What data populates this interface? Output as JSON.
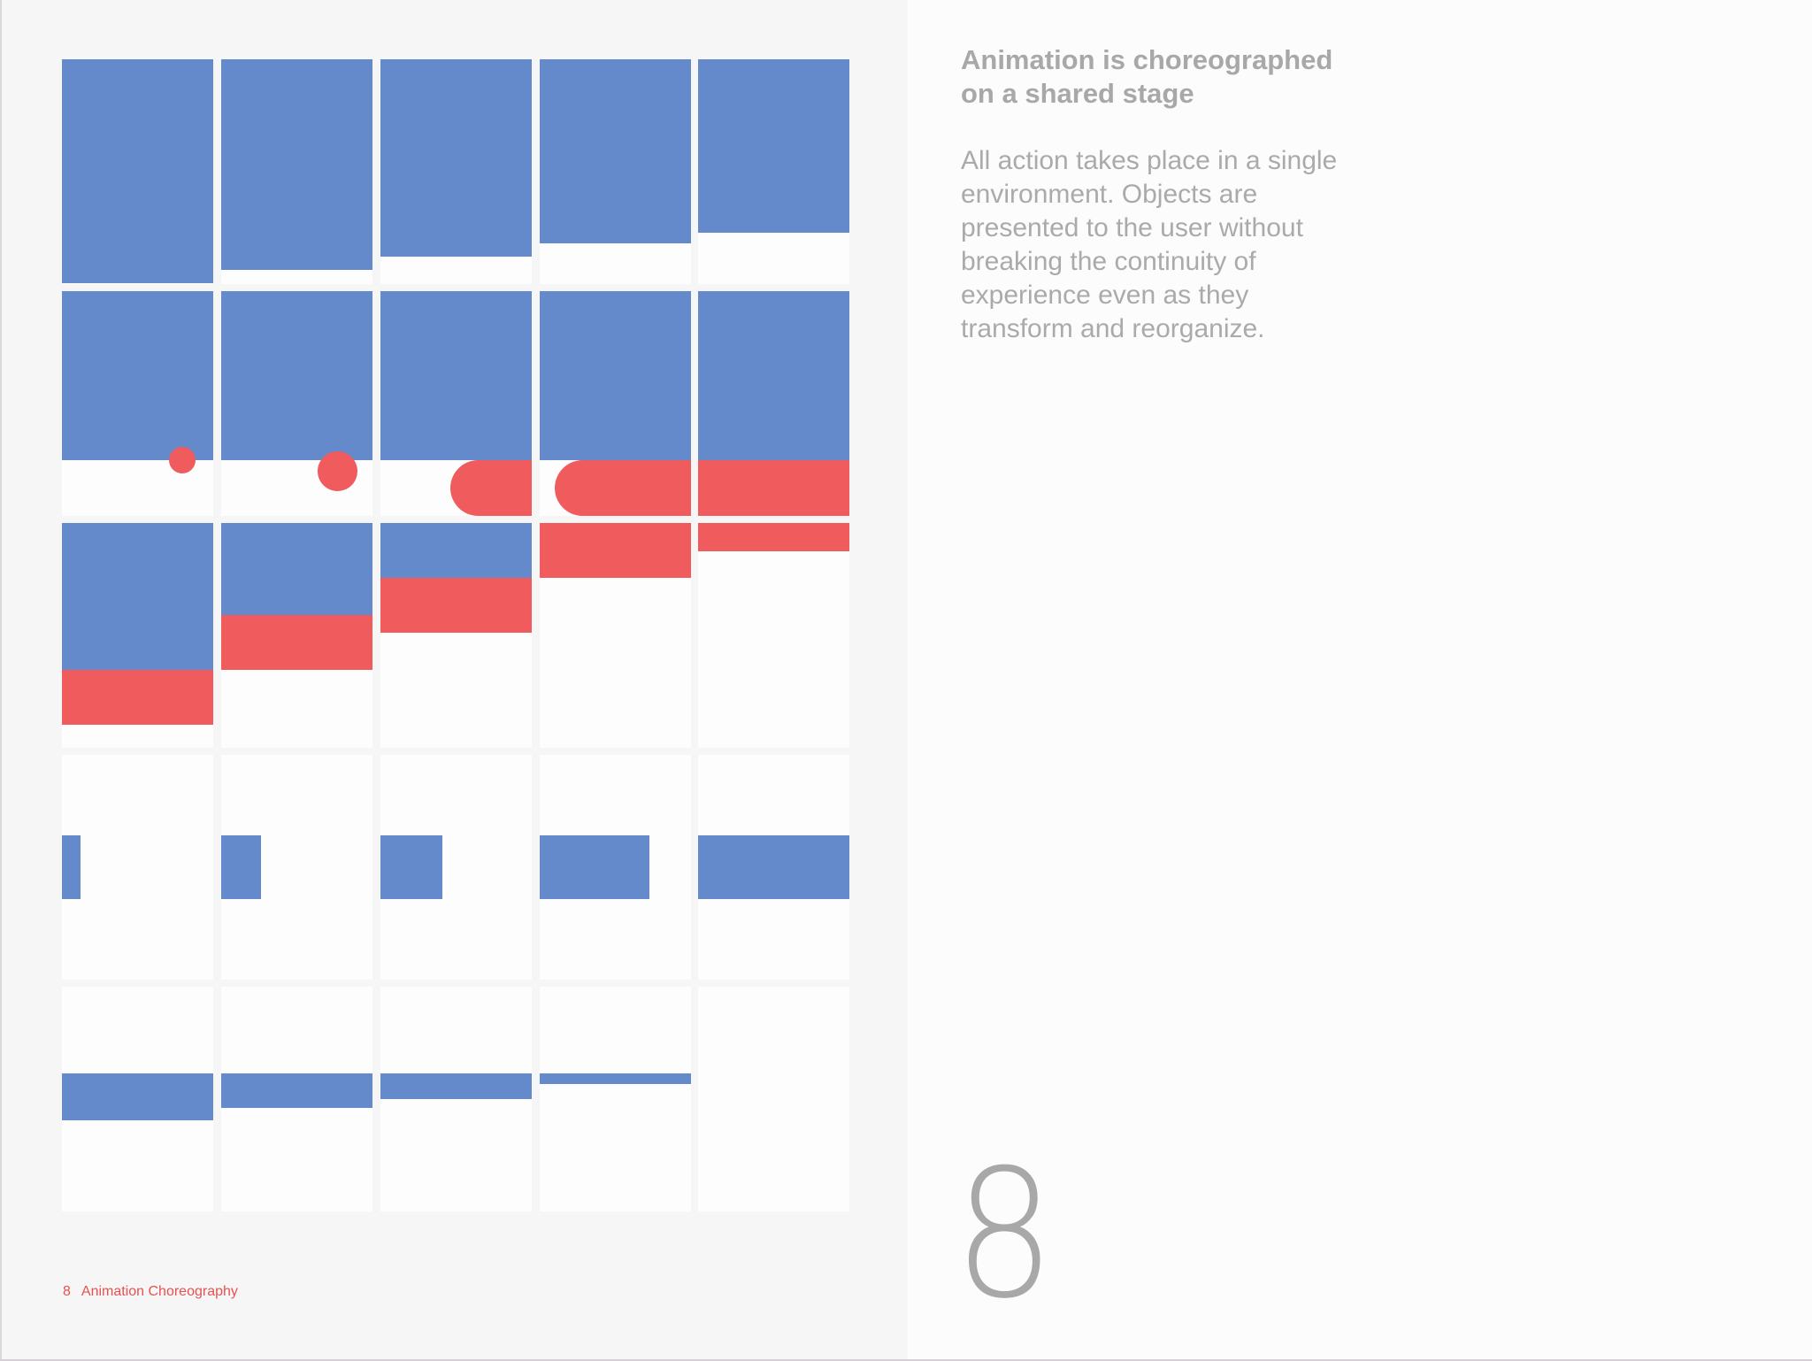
{
  "spread": {
    "title_line1": "Animation is choreographed",
    "title_line2": "on a shared stage",
    "body": "All action takes place in a single environment. Objects are presented to the user without breaking the continuity of experience even as they transform and reorganize.",
    "chapter_number": "8"
  },
  "footer": {
    "page_number": "8",
    "section": "Animation Choreography"
  },
  "colors": {
    "blue": "#658acc",
    "red": "#f05b5d",
    "text_gray": "#a8a8a8",
    "footer_red": "#e5524f"
  },
  "figure": {
    "rows": 5,
    "columns": 5,
    "description_kind": "animation frame sequence"
  }
}
